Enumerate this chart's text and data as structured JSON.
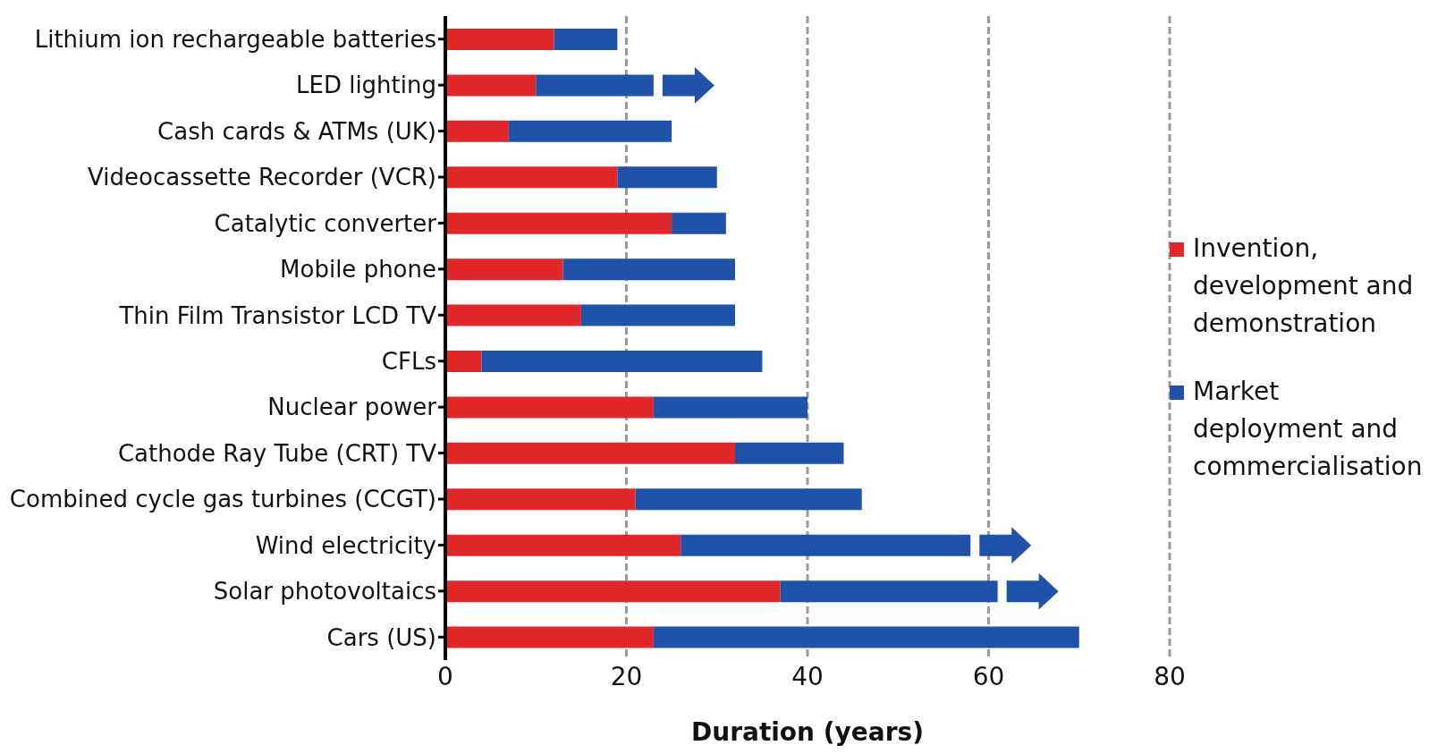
{
  "chart_data": {
    "type": "bar",
    "orientation": "horizontal",
    "stacked": true,
    "xlabel": "Duration (years)",
    "categories": [
      "Lithium ion rechargeable batteries",
      "LED lighting",
      "Cash cards & ATMs (UK)",
      "Videocassette Recorder (VCR)",
      "Catalytic converter",
      "Mobile phone",
      "Thin Film Transistor LCD TV",
      "CFLs",
      "Nuclear power",
      "Cathode Ray Tube (CRT) TV",
      "Combined cycle gas turbines (CCGT)",
      "Wind electricity",
      "Solar photovoltaics",
      "Cars (US)"
    ],
    "series": [
      {
        "name": "Invention, development and demonstration",
        "color": "#e0282a",
        "values": [
          12,
          10,
          7,
          19,
          25,
          13,
          15,
          4,
          23,
          32,
          21,
          26,
          37,
          23
        ]
      },
      {
        "name": "Market deployment and commercialisation",
        "color": "#1f52a8",
        "values": [
          7,
          13,
          18,
          11,
          6,
          19,
          17,
          31,
          17,
          12,
          25,
          32,
          24,
          47
        ]
      }
    ],
    "xlim": [
      0,
      80
    ],
    "xticks": [
      0,
      20,
      40,
      60,
      80
    ],
    "grid": "x",
    "legend": "right"
  }
}
